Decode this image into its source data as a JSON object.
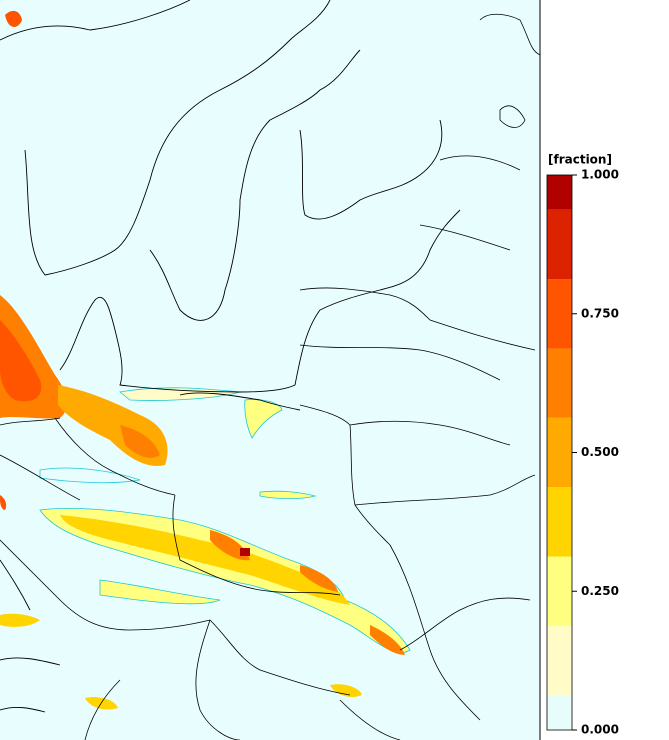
{
  "chart_data": {
    "type": "colorbar",
    "title": "[fraction]",
    "levels": [
      0,
      0.0625,
      0.1875,
      0.3125,
      0.4375,
      0.5625,
      0.6875,
      0.8125,
      0.9375,
      1
    ],
    "colors": [
      "#e8fcfc",
      "#fffcc8",
      "#ffff80",
      "#ffd400",
      "#ffaa00",
      "#ff8000",
      "#ff5500",
      "#dd2200",
      "#b00000"
    ],
    "ylim": [
      0,
      1
    ],
    "yticks": [
      {
        "value": 0,
        "label": "0.000"
      },
      {
        "value": 0.25,
        "label": "0.250"
      },
      {
        "value": 0.5,
        "label": "0.500"
      },
      {
        "value": 0.75,
        "label": "0.750"
      },
      {
        "value": 1,
        "label": "1.000"
      }
    ]
  }
}
